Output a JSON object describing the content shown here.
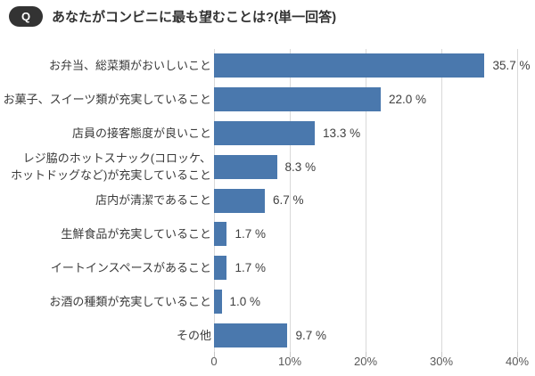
{
  "header": {
    "q_badge": "Q",
    "title": "あなたがコンビニに最も望むことは?(単一回答)"
  },
  "chart_data": {
    "type": "bar",
    "orientation": "horizontal",
    "title": "あなたがコンビニに最も望むことは?(単一回答)",
    "categories": [
      "お弁当、総菜類がおいしいこと",
      "お菓子、スイーツ類が充実していること",
      "店員の接客態度が良いこと",
      "レジ脇のホットスナック(コロッケ、\nホットドッグなど)が充実していること",
      "店内が清潔であること",
      "生鮮食品が充実していること",
      "イートインスペースがあること",
      "お酒の種類が充実していること",
      "その他"
    ],
    "values": [
      35.7,
      22.0,
      13.3,
      8.3,
      6.7,
      1.7,
      1.7,
      1.0,
      9.7
    ],
    "value_labels": [
      "35.7 %",
      "22.0 %",
      "13.3 %",
      "8.3 %",
      "6.7 %",
      "1.7 %",
      "1.7 %",
      "1.0 %",
      "9.7 %"
    ],
    "xlabel": "",
    "ylabel": "",
    "xlim": [
      0,
      40
    ],
    "x_ticks": [
      {
        "value": 0,
        "label": "0"
      },
      {
        "value": 10,
        "label": "10%"
      },
      {
        "value": 20,
        "label": "20%"
      },
      {
        "value": 30,
        "label": "30%"
      },
      {
        "value": 40,
        "label": "40%"
      }
    ],
    "grid": true,
    "legend": false
  },
  "colors": {
    "bar": "#4a78ad",
    "title_text": "#333333",
    "category_label": "#3a3a3a",
    "value_label": "#404040",
    "tick_label": "#595959",
    "gridline": "#d9d9d9",
    "tick_mark": "#c6c6c6",
    "badge_bg": "#333333",
    "badge_text": "#ffffff",
    "background": "#ffffff"
  }
}
